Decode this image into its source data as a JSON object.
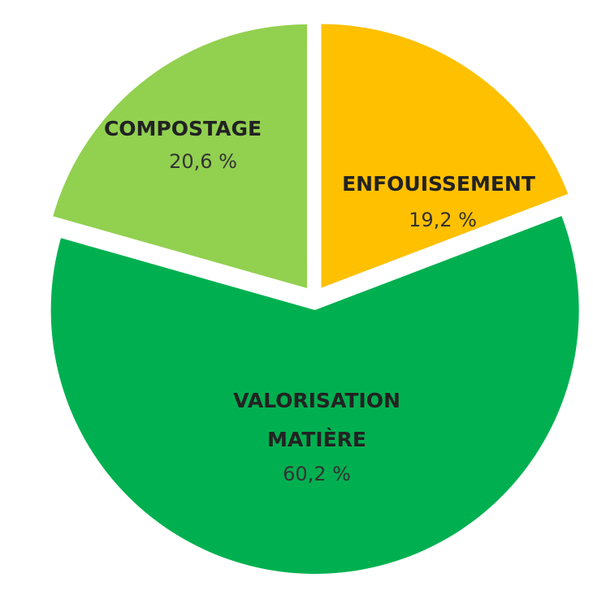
{
  "chart_data": {
    "type": "pie",
    "categories": [
      "ENFOUISSEMENT",
      "VALORISATION MATIÈRE",
      "COMPOSTAGE"
    ],
    "values": [
      19.2,
      60.2,
      20.6
    ],
    "value_labels": [
      "19,2 %",
      "60,2 %",
      "20,6 %"
    ],
    "colors": [
      "#FFC000",
      "#00B050",
      "#92D050"
    ]
  }
}
